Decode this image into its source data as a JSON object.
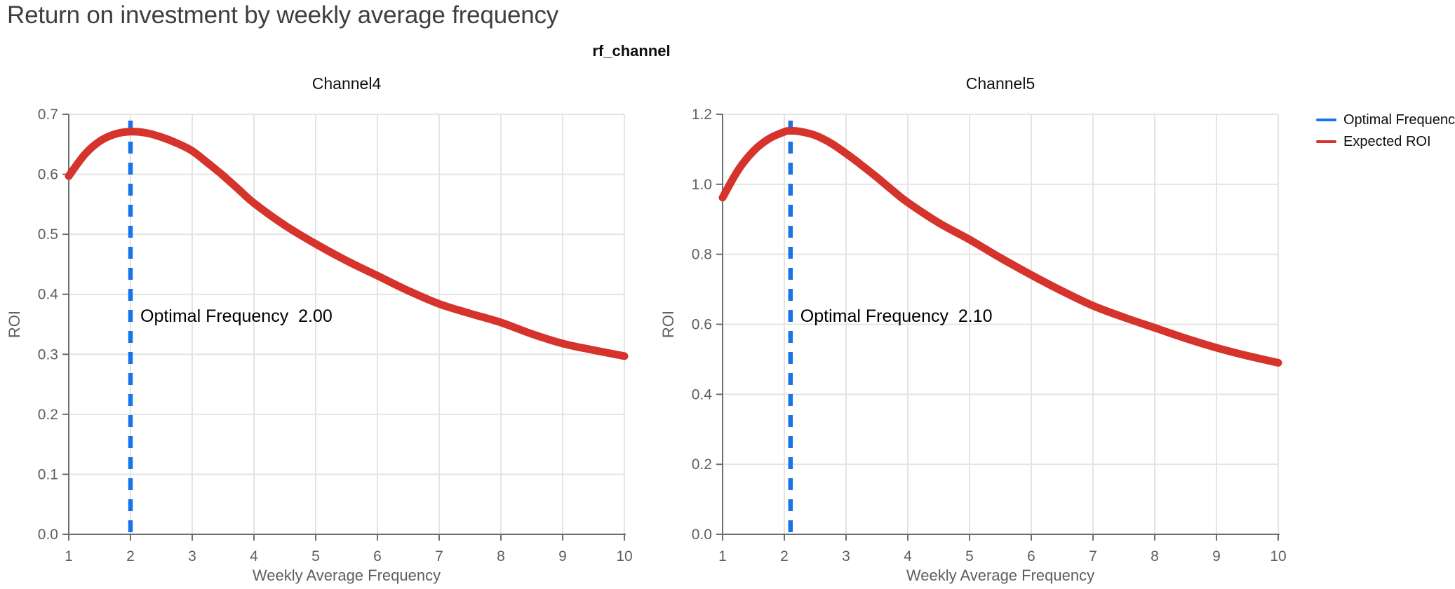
{
  "page": {
    "title": "Return on investment by weekly average frequency",
    "facet_title": "rf_channel"
  },
  "legend": {
    "items": [
      {
        "label": "Optimal Frequency",
        "color": "#1a73e8"
      },
      {
        "label": "Expected ROI",
        "color": "#d5332b"
      }
    ]
  },
  "colors": {
    "optimal_line": "#1a73e8",
    "roi_curve": "#d5332b",
    "axis": "#6b6f73",
    "grid": "#e4e4e6",
    "tick_text": "#5b5f63",
    "annotation_text": "#000000",
    "title_text": "#3c4043"
  },
  "chart_data": [
    {
      "type": "line",
      "title": "Channel4",
      "xlabel": "Weekly Average Frequency",
      "ylabel": "ROI",
      "xlim": [
        1,
        10
      ],
      "ylim": [
        0,
        0.7
      ],
      "grid": true,
      "xticks": [
        1,
        2,
        3,
        4,
        5,
        6,
        7,
        8,
        9,
        10
      ],
      "xtick_labels": [
        "1",
        "2",
        "3",
        "4",
        "5",
        "6",
        "7",
        "8",
        "9",
        "10"
      ],
      "yticks": [
        0.0,
        0.1,
        0.2,
        0.3,
        0.4,
        0.5,
        0.6,
        0.7
      ],
      "ytick_labels": [
        "0.0",
        "0.1",
        "0.2",
        "0.3",
        "0.4",
        "0.5",
        "0.6",
        "0.7"
      ],
      "optimal_frequency": 2.0,
      "annotation": {
        "label": "Optimal Frequency",
        "value": "2.00"
      },
      "series": [
        {
          "name": "Expected ROI",
          "color": "#d5332b",
          "x": [
            1,
            1.25,
            1.5,
            1.75,
            2,
            2.25,
            2.5,
            2.75,
            3,
            3.25,
            3.5,
            3.75,
            4,
            4.5,
            5,
            5.5,
            6,
            6.5,
            7,
            7.5,
            8,
            8.5,
            9,
            9.5,
            10
          ],
          "y": [
            0.597,
            0.632,
            0.655,
            0.667,
            0.671,
            0.669,
            0.662,
            0.652,
            0.639,
            0.619,
            0.598,
            0.575,
            0.552,
            0.515,
            0.484,
            0.456,
            0.431,
            0.406,
            0.384,
            0.368,
            0.353,
            0.334,
            0.318,
            0.307,
            0.297
          ]
        }
      ]
    },
    {
      "type": "line",
      "title": "Channel5",
      "xlabel": "Weekly Average Frequency",
      "ylabel": "ROI",
      "xlim": [
        1,
        10
      ],
      "ylim": [
        0,
        1.2
      ],
      "grid": true,
      "xticks": [
        1,
        2,
        3,
        4,
        5,
        6,
        7,
        8,
        9,
        10
      ],
      "xtick_labels": [
        "1",
        "2",
        "3",
        "4",
        "5",
        "6",
        "7",
        "8",
        "9",
        "10"
      ],
      "yticks": [
        0.0,
        0.2,
        0.4,
        0.6,
        0.8,
        1.0,
        1.2
      ],
      "ytick_labels": [
        "0.0",
        "0.2",
        "0.4",
        "0.6",
        "0.8",
        "1.0",
        "1.2"
      ],
      "optimal_frequency": 2.1,
      "annotation": {
        "label": "Optimal Frequency",
        "value": "2.10"
      },
      "series": [
        {
          "name": "Expected ROI",
          "color": "#d5332b",
          "x": [
            1,
            1.25,
            1.5,
            1.75,
            2,
            2.1,
            2.25,
            2.5,
            2.75,
            3,
            3.25,
            3.5,
            3.75,
            4,
            4.5,
            5,
            5.5,
            6,
            6.5,
            7,
            7.5,
            8,
            8.5,
            9,
            9.5,
            10
          ],
          "y": [
            0.962,
            1.04,
            1.095,
            1.13,
            1.15,
            1.153,
            1.151,
            1.14,
            1.118,
            1.088,
            1.055,
            1.02,
            0.983,
            0.948,
            0.89,
            0.842,
            0.79,
            0.741,
            0.695,
            0.653,
            0.62,
            0.59,
            0.56,
            0.533,
            0.51,
            0.49
          ]
        }
      ]
    }
  ]
}
